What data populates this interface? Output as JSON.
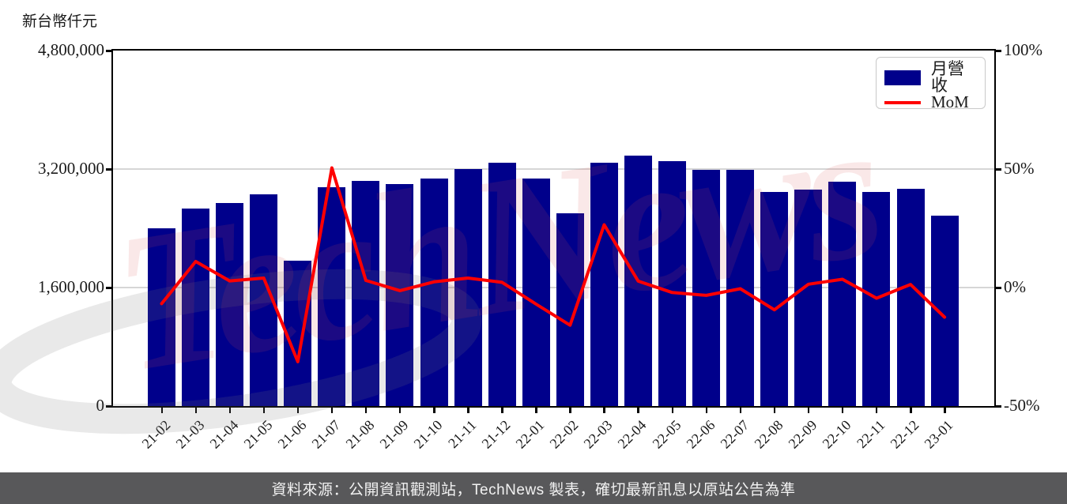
{
  "page": {
    "unit_label": "新台幣仟元",
    "watermark": "TechNews",
    "footer": "資料來源：公開資訊觀測站，TechNews 製表，確切最新訊息以原站公告為準"
  },
  "legend": {
    "bar_label": "月營收",
    "line_label": "MoM"
  },
  "axes": {
    "left_ticks": [
      "4,800,000",
      "3,200,000",
      "1,600,000",
      "0"
    ],
    "right_ticks": [
      "100%",
      "50%",
      "0%",
      "-50%"
    ]
  },
  "colors": {
    "bar": "#00008B",
    "line": "#FF0000",
    "grid": "#D6D6D6",
    "footer_bg": "#58585A"
  },
  "chart_data": {
    "type": "bar+line",
    "title": "新台幣仟元",
    "categories": [
      "21-02",
      "21-03",
      "21-04",
      "21-05",
      "21-06",
      "21-07",
      "21-08",
      "21-09",
      "21-10",
      "21-11",
      "21-12",
      "22-01",
      "22-02",
      "22-03",
      "22-04",
      "22-05",
      "22-06",
      "22-07",
      "22-08",
      "22-09",
      "22-10",
      "22-11",
      "22-12",
      "23-01"
    ],
    "series": [
      {
        "name": "月營收",
        "type": "bar",
        "axis": "left",
        "unit": "新台幣仟元",
        "values": [
          2400000,
          2665000,
          2745000,
          2855000,
          1960000,
          2950000,
          3040000,
          3000000,
          3072000,
          3196000,
          3290000,
          3070000,
          2600000,
          3290000,
          3378000,
          3310000,
          3195000,
          3190000,
          2888000,
          2928000,
          3030000,
          2895000,
          2930000,
          2568000
        ]
      },
      {
        "name": "MoM",
        "type": "line",
        "axis": "right",
        "unit": "%",
        "values": [
          -6.8,
          11.0,
          2.8,
          4.0,
          -31.3,
          50.5,
          3.0,
          -1.3,
          2.4,
          4.0,
          2.2,
          -7.0,
          -15.9,
          26.5,
          2.7,
          -2.1,
          -3.3,
          -0.5,
          -9.4,
          1.4,
          3.5,
          -4.5,
          1.3,
          -12.5
        ]
      }
    ],
    "left_axis": {
      "label": "新台幣仟元",
      "ticks": [
        0,
        1600000,
        3200000,
        4800000
      ],
      "range": [
        0,
        4800000
      ]
    },
    "right_axis": {
      "label": "MoM %",
      "ticks": [
        -50,
        0,
        50,
        100
      ],
      "range": [
        -50,
        100
      ]
    },
    "grid": true,
    "legend_position": "top-right"
  }
}
